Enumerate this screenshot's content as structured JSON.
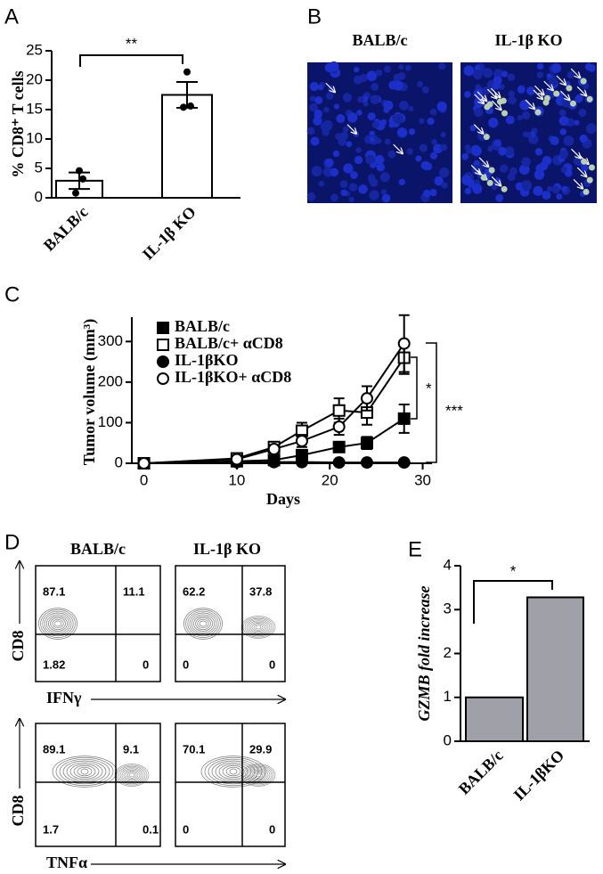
{
  "panel_letters": [
    "A",
    "B",
    "C",
    "D",
    "E"
  ],
  "chart_data": [
    {
      "type": "bar",
      "categories": [
        "BALB/c",
        "IL-1β KO"
      ],
      "values": [
        2.9,
        17.5
      ],
      "errors": [
        1.4,
        2.2
      ],
      "points": [
        [
          4.6,
          3.2,
          0.8
        ],
        [
          21.4,
          15.6,
          15.4
        ]
      ],
      "color": "#ffffff",
      "ylim": [
        0,
        25
      ],
      "yticks": [
        0,
        5,
        10,
        15,
        20,
        25
      ],
      "y_label": "% CD8⁺ T cells",
      "significance": "**"
    },
    {
      "type": "line",
      "x": [
        0,
        10,
        14,
        17,
        21,
        24,
        28
      ],
      "series": [
        {
          "name": "BALB/c",
          "color": "#000000",
          "marker": "filled-square",
          "values": [
            0,
            5,
            8,
            20,
            40,
            50,
            110
          ],
          "errors": [
            0,
            3,
            5,
            8,
            10,
            15,
            35
          ]
        },
        {
          "name": "BALB/c+ αCD8",
          "color": "#000000",
          "marker": "open-square",
          "values": [
            0,
            12,
            40,
            80,
            130,
            125,
            260
          ],
          "errors": [
            0,
            5,
            10,
            20,
            30,
            30,
            40
          ]
        },
        {
          "name": "IL-1βKO",
          "color": "#000000",
          "marker": "filled-circle",
          "values": [
            0,
            3,
            3,
            3,
            2,
            2,
            2
          ],
          "errors": [
            0,
            1,
            1,
            1,
            1,
            1,
            1
          ]
        },
        {
          "name": "IL-1βKO+ αCD8",
          "color": "#000000",
          "marker": "open-circle",
          "values": [
            0,
            10,
            35,
            55,
            90,
            160,
            295
          ],
          "errors": [
            0,
            5,
            10,
            15,
            20,
            30,
            70
          ]
        }
      ],
      "xlim": [
        -1.3,
        31
      ],
      "xticks": [
        0,
        10,
        20,
        30
      ],
      "ylim": [
        0,
        360
      ],
      "yticks": [
        0,
        100,
        200,
        300
      ],
      "x_label": "Days",
      "y_label": "Tumor volume (mm³)",
      "annotations": [
        "*",
        "***"
      ]
    },
    {
      "type": "bar",
      "categories": [
        "BALB/c",
        "IL-1βKO"
      ],
      "values": [
        1,
        3.28
      ],
      "color": "#a0a0a8",
      "ylim": [
        0,
        4
      ],
      "yticks": [
        0,
        1,
        2,
        3,
        4
      ],
      "y_label": "GZMB fold increase",
      "significance": "*"
    }
  ],
  "panel_b": {
    "images": [
      {
        "label": "BALB/c"
      },
      {
        "label": "IL-1β KO"
      }
    ]
  },
  "panel_d": {
    "columns": [
      "BALB/c",
      "IL-1β KO"
    ],
    "rows": [
      {
        "y_label": "CD8",
        "x_label": "IFNγ",
        "quadrants": [
          [
            87.1,
            11.1,
            1.82,
            0
          ],
          [
            62.2,
            37.8,
            0,
            0
          ]
        ]
      },
      {
        "y_label": "CD8",
        "x_label": "TNFα",
        "quadrants": [
          [
            89.1,
            9.1,
            1.7,
            0.1
          ],
          [
            70.1,
            29.9,
            0,
            0
          ]
        ]
      }
    ]
  }
}
